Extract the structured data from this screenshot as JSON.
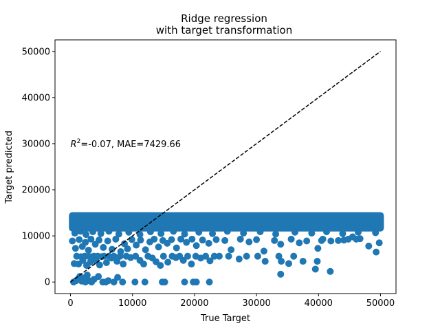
{
  "chart_data": {
    "type": "scatter",
    "title_line1": "Ridge regression",
    "title_line2": "with target transformation",
    "xlabel": "True Target",
    "ylabel": "Target predicted",
    "xlim": [
      -2500,
      52500
    ],
    "ylim": [
      -2500,
      52500
    ],
    "x_ticks": [
      0,
      10000,
      20000,
      30000,
      40000,
      50000
    ],
    "y_ticks": [
      0,
      10000,
      20000,
      30000,
      40000,
      50000
    ],
    "x_tick_labels": [
      "0",
      "10000",
      "20000",
      "30000",
      "40000",
      "50000"
    ],
    "y_tick_labels": [
      "0",
      "10000",
      "20000",
      "30000",
      "40000",
      "50000"
    ],
    "annotation": {
      "r2_symbol": "R",
      "r2_superscript": "2",
      "text": "=-0.07, MAE=7429.66",
      "x": 0,
      "y": 30000
    },
    "reference_line": {
      "style": "dashed",
      "color": "#000000",
      "x": [
        0,
        50000
      ],
      "y": [
        0,
        50000
      ]
    },
    "series_color": "#1f77b4",
    "dense_band": {
      "x_range": [
        300,
        50000
      ],
      "y_range": [
        11700,
        14400
      ]
    },
    "points": [
      [
        500,
        0
      ],
      [
        900,
        300
      ],
      [
        1200,
        600
      ],
      [
        1500,
        1200
      ],
      [
        1800,
        200
      ],
      [
        2100,
        900
      ],
      [
        2400,
        0
      ],
      [
        2700,
        1500
      ],
      [
        3000,
        300
      ],
      [
        3400,
        0
      ],
      [
        3800,
        600
      ],
      [
        4500,
        1200
      ],
      [
        5200,
        0
      ],
      [
        5700,
        0
      ],
      [
        6100,
        300
      ],
      [
        7000,
        0
      ],
      [
        7600,
        1000
      ],
      [
        8400,
        0
      ],
      [
        10400,
        0
      ],
      [
        12000,
        0
      ],
      [
        14800,
        0
      ],
      [
        15200,
        0
      ],
      [
        18400,
        0
      ],
      [
        19800,
        0
      ],
      [
        20300,
        0
      ],
      [
        22400,
        0
      ],
      [
        33900,
        1700
      ],
      [
        39500,
        2800
      ],
      [
        41900,
        2300
      ],
      [
        34000,
        4500
      ],
      [
        37500,
        4500
      ],
      [
        600,
        4000
      ],
      [
        1000,
        5600
      ],
      [
        1300,
        3900
      ],
      [
        1700,
        5500
      ],
      [
        2000,
        4700
      ],
      [
        2300,
        5600
      ],
      [
        2600,
        3600
      ],
      [
        2900,
        5600
      ],
      [
        3200,
        4300
      ],
      [
        3500,
        5500
      ],
      [
        3800,
        5600
      ],
      [
        4100,
        4600
      ],
      [
        4400,
        5600
      ],
      [
        4700,
        3700
      ],
      [
        5000,
        5500
      ],
      [
        5400,
        5600
      ],
      [
        5800,
        4200
      ],
      [
        6200,
        5600
      ],
      [
        6600,
        5200
      ],
      [
        7000,
        5600
      ],
      [
        7500,
        4500
      ],
      [
        8000,
        5600
      ],
      [
        8500,
        3900
      ],
      [
        9000,
        5600
      ],
      [
        9700,
        5300
      ],
      [
        10500,
        5600
      ],
      [
        11200,
        4700
      ],
      [
        11800,
        3900
      ],
      [
        12500,
        5600
      ],
      [
        13200,
        5200
      ],
      [
        13800,
        4400
      ],
      [
        14500,
        3600
      ],
      [
        15000,
        5600
      ],
      [
        15700,
        4300
      ],
      [
        16400,
        5600
      ],
      [
        17000,
        5300
      ],
      [
        17600,
        5600
      ],
      [
        18200,
        4700
      ],
      [
        18900,
        5600
      ],
      [
        19500,
        3900
      ],
      [
        20200,
        5600
      ],
      [
        21000,
        5200
      ],
      [
        21800,
        5600
      ],
      [
        22500,
        4600
      ],
      [
        23200,
        5600
      ],
      [
        24000,
        5600
      ],
      [
        25500,
        5600
      ],
      [
        27200,
        5000
      ],
      [
        28400,
        5600
      ],
      [
        30200,
        5600
      ],
      [
        31400,
        4500
      ],
      [
        33600,
        5600
      ],
      [
        35200,
        4000
      ],
      [
        36000,
        5600
      ],
      [
        39800,
        4500
      ],
      [
        300,
        8900
      ],
      [
        800,
        7300
      ],
      [
        1400,
        9200
      ],
      [
        1900,
        7700
      ],
      [
        2400,
        8600
      ],
      [
        2900,
        6900
      ],
      [
        3300,
        9300
      ],
      [
        4000,
        8200
      ],
      [
        4600,
        9100
      ],
      [
        5300,
        7500
      ],
      [
        6000,
        8900
      ],
      [
        6700,
        7100
      ],
      [
        7300,
        9300
      ],
      [
        8100,
        6600
      ],
      [
        8700,
        8300
      ],
      [
        9200,
        7200
      ],
      [
        9900,
        9200
      ],
      [
        10600,
        8000
      ],
      [
        11300,
        9100
      ],
      [
        12100,
        7000
      ],
      [
        12800,
        8700
      ],
      [
        13500,
        9300
      ],
      [
        14200,
        7600
      ],
      [
        14900,
        9000
      ],
      [
        15600,
        8400
      ],
      [
        16300,
        9200
      ],
      [
        17100,
        7400
      ],
      [
        17800,
        9300
      ],
      [
        18700,
        8600
      ],
      [
        19600,
        9300
      ],
      [
        20300,
        7900
      ],
      [
        21300,
        9100
      ],
      [
        22300,
        8400
      ],
      [
        23500,
        9200
      ],
      [
        24900,
        9000
      ],
      [
        25900,
        7000
      ],
      [
        27400,
        9300
      ],
      [
        28800,
        8700
      ],
      [
        30000,
        9200
      ],
      [
        31200,
        6700
      ],
      [
        32900,
        9000
      ],
      [
        33900,
        8200
      ],
      [
        35600,
        9300
      ],
      [
        36900,
        8500
      ],
      [
        38100,
        8900
      ],
      [
        39900,
        7300
      ],
      [
        40700,
        9300
      ],
      [
        42000,
        8900
      ],
      [
        43200,
        9000
      ],
      [
        44800,
        9300
      ],
      [
        45500,
        9800
      ],
      [
        46700,
        9400
      ],
      [
        48100,
        7800
      ],
      [
        49300,
        6500
      ],
      [
        49800,
        8500
      ],
      [
        700,
        10600
      ],
      [
        1600,
        11000
      ],
      [
        2500,
        10300
      ],
      [
        3600,
        10900
      ],
      [
        4900,
        10500
      ],
      [
        6200,
        11000
      ],
      [
        7800,
        10400
      ],
      [
        9400,
        10800
      ],
      [
        11200,
        10300
      ],
      [
        12900,
        10900
      ],
      [
        14600,
        10500
      ],
      [
        16600,
        11000
      ],
      [
        18400,
        10400
      ],
      [
        20700,
        10800
      ],
      [
        22900,
        10500
      ],
      [
        25300,
        11000
      ],
      [
        27900,
        10600
      ],
      [
        30600,
        10900
      ],
      [
        33100,
        10400
      ],
      [
        36200,
        10800
      ],
      [
        38900,
        10600
      ],
      [
        41300,
        10900
      ],
      [
        43900,
        10500
      ],
      [
        46400,
        10800
      ],
      [
        49200,
        10700
      ],
      [
        40500,
        9000
      ],
      [
        44100,
        9100
      ],
      [
        46100,
        9300
      ]
    ]
  }
}
